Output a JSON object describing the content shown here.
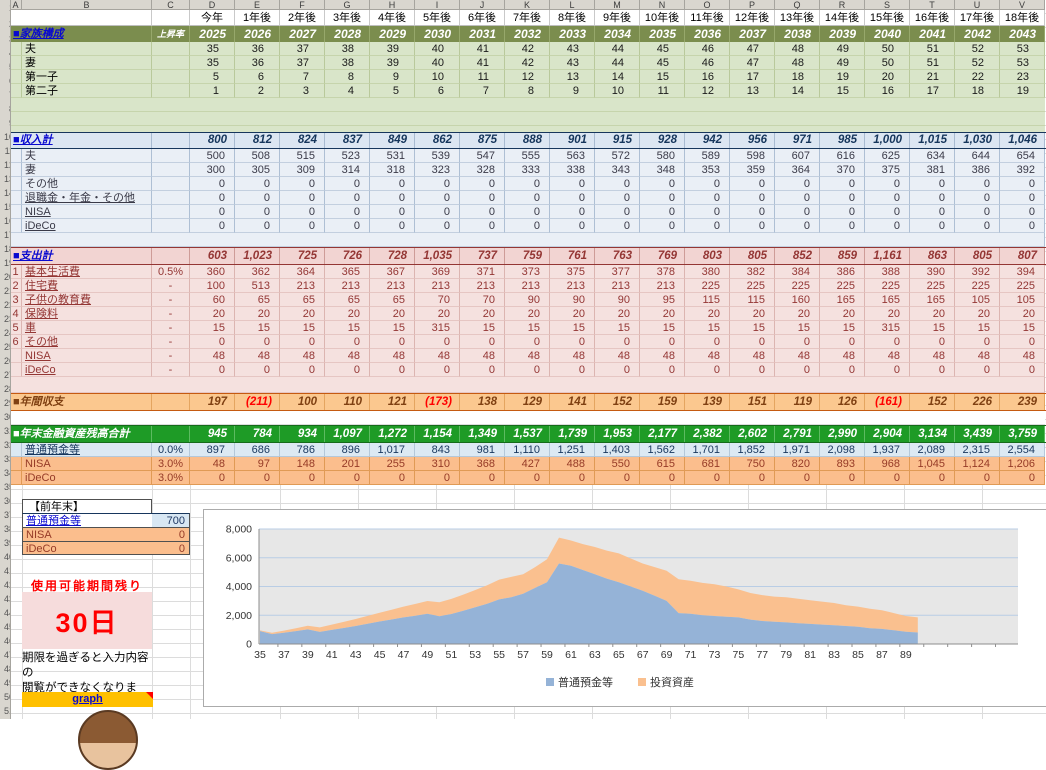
{
  "table": {
    "col_letters": [
      "A",
      "B",
      "C",
      "D",
      "E",
      "F",
      "G",
      "H",
      "I",
      "J",
      "K",
      "L",
      "M",
      "N",
      "O",
      "P",
      "Q",
      "R",
      "S",
      "T",
      "U",
      "V"
    ],
    "rel_years": [
      "今年",
      "1年後",
      "2年後",
      "3年後",
      "4年後",
      "5年後",
      "6年後",
      "7年後",
      "8年後",
      "9年後",
      "10年後",
      "11年後",
      "12年後",
      "13年後",
      "14年後",
      "15年後",
      "16年後",
      "17年後",
      "18年後"
    ],
    "years": [
      "2025",
      "2026",
      "2027",
      "2028",
      "2029",
      "2030",
      "2031",
      "2032",
      "2033",
      "2034",
      "2035",
      "2036",
      "2037",
      "2038",
      "2039",
      "2040",
      "2041",
      "2042",
      "2043"
    ],
    "family": {
      "title": "■家族構成",
      "rate_label": "上昇率",
      "rows": [
        {
          "label": "夫",
          "values": [
            35,
            36,
            37,
            38,
            39,
            40,
            41,
            42,
            43,
            44,
            45,
            46,
            47,
            48,
            49,
            50,
            51,
            52,
            53
          ]
        },
        {
          "label": "妻",
          "values": [
            35,
            36,
            37,
            38,
            39,
            40,
            41,
            42,
            43,
            44,
            45,
            46,
            47,
            48,
            49,
            50,
            51,
            52,
            53
          ]
        },
        {
          "label": "第一子",
          "values": [
            5,
            6,
            7,
            8,
            9,
            10,
            11,
            12,
            13,
            14,
            15,
            16,
            17,
            18,
            19,
            20,
            21,
            22,
            23
          ]
        },
        {
          "label": "第二子",
          "values": [
            1,
            2,
            3,
            4,
            5,
            6,
            7,
            8,
            9,
            10,
            11,
            12,
            13,
            14,
            15,
            16,
            17,
            18,
            19
          ]
        }
      ]
    },
    "income": {
      "title": "■収入計",
      "totals": [
        800,
        812,
        824,
        837,
        849,
        862,
        875,
        888,
        901,
        915,
        928,
        942,
        956,
        971,
        985,
        1000,
        1015,
        1030,
        1046
      ],
      "rows": [
        {
          "label": "夫",
          "link": false,
          "values": [
            500,
            508,
            515,
            523,
            531,
            539,
            547,
            555,
            563,
            572,
            580,
            589,
            598,
            607,
            616,
            625,
            634,
            644,
            654
          ]
        },
        {
          "label": "妻",
          "link": false,
          "values": [
            300,
            305,
            309,
            314,
            318,
            323,
            328,
            333,
            338,
            343,
            348,
            353,
            359,
            364,
            370,
            375,
            381,
            386,
            392
          ]
        },
        {
          "label": "その他",
          "link": false,
          "values": [
            0,
            0,
            0,
            0,
            0,
            0,
            0,
            0,
            0,
            0,
            0,
            0,
            0,
            0,
            0,
            0,
            0,
            0,
            0
          ]
        },
        {
          "label": "退職金・年金・その他",
          "link": true,
          "values": [
            0,
            0,
            0,
            0,
            0,
            0,
            0,
            0,
            0,
            0,
            0,
            0,
            0,
            0,
            0,
            0,
            0,
            0,
            0
          ]
        },
        {
          "label": "NISA",
          "link": true,
          "values": [
            0,
            0,
            0,
            0,
            0,
            0,
            0,
            0,
            0,
            0,
            0,
            0,
            0,
            0,
            0,
            0,
            0,
            0,
            0
          ]
        },
        {
          "label": "iDeCo",
          "link": true,
          "values": [
            0,
            0,
            0,
            0,
            0,
            0,
            0,
            0,
            0,
            0,
            0,
            0,
            0,
            0,
            0,
            0,
            0,
            0,
            0
          ]
        }
      ]
    },
    "expense": {
      "title": "■支出計",
      "totals": [
        603,
        1023,
        725,
        726,
        728,
        1035,
        737,
        759,
        761,
        763,
        769,
        803,
        805,
        852,
        859,
        1161,
        863,
        805,
        807
      ],
      "rows": [
        {
          "num": "1",
          "label": "基本生活費",
          "rate": "0.5%",
          "values": [
            360,
            362,
            364,
            365,
            367,
            369,
            371,
            373,
            375,
            377,
            378,
            380,
            382,
            384,
            386,
            388,
            390,
            392,
            394
          ]
        },
        {
          "num": "2",
          "label": "住宅費",
          "rate": "-",
          "values": [
            100,
            513,
            213,
            213,
            213,
            213,
            213,
            213,
            213,
            213,
            213,
            225,
            225,
            225,
            225,
            225,
            225,
            225,
            225
          ]
        },
        {
          "num": "3",
          "label": "子供の教育費",
          "rate": "-",
          "values": [
            60,
            65,
            65,
            65,
            65,
            70,
            70,
            90,
            90,
            90,
            95,
            115,
            115,
            160,
            165,
            165,
            165,
            105,
            105
          ]
        },
        {
          "num": "4",
          "label": "保険料",
          "rate": "-",
          "values": [
            20,
            20,
            20,
            20,
            20,
            20,
            20,
            20,
            20,
            20,
            20,
            20,
            20,
            20,
            20,
            20,
            20,
            20,
            20
          ]
        },
        {
          "num": "5",
          "label": "車",
          "rate": "-",
          "values": [
            15,
            15,
            15,
            15,
            15,
            315,
            15,
            15,
            15,
            15,
            15,
            15,
            15,
            15,
            15,
            315,
            15,
            15,
            15
          ]
        },
        {
          "num": "6",
          "label": "その他",
          "rate": "-",
          "values": [
            0,
            0,
            0,
            0,
            0,
            0,
            0,
            0,
            0,
            0,
            0,
            0,
            0,
            0,
            0,
            0,
            0,
            0,
            0
          ]
        },
        {
          "num": "",
          "label": "NISA",
          "rate": "-",
          "values": [
            48,
            48,
            48,
            48,
            48,
            48,
            48,
            48,
            48,
            48,
            48,
            48,
            48,
            48,
            48,
            48,
            48,
            48,
            48
          ]
        },
        {
          "num": "",
          "label": "iDeCo",
          "rate": "-",
          "values": [
            0,
            0,
            0,
            0,
            0,
            0,
            0,
            0,
            0,
            0,
            0,
            0,
            0,
            0,
            0,
            0,
            0,
            0,
            0
          ]
        }
      ]
    },
    "balance": {
      "title": "■年間収支",
      "values": [
        197,
        -211,
        100,
        110,
        121,
        -173,
        138,
        129,
        141,
        152,
        159,
        139,
        151,
        119,
        126,
        -161,
        152,
        226,
        239
      ]
    },
    "assets": {
      "title": "■年末金融資産残高合計",
      "totals": [
        945,
        784,
        934,
        1097,
        1272,
        1154,
        1349,
        1537,
        1739,
        1953,
        2177,
        2382,
        2602,
        2791,
        2990,
        2904,
        3134,
        3439,
        3759
      ],
      "rows": [
        {
          "label": "普通預金等",
          "rate": "0.0%",
          "theme": "blue",
          "link": true,
          "values": [
            897,
            686,
            786,
            896,
            1017,
            843,
            981,
            1110,
            1251,
            1403,
            1562,
            1701,
            1852,
            1971,
            2098,
            1937,
            2089,
            2315,
            2554
          ]
        },
        {
          "label": "NISA",
          "rate": "3.0%",
          "theme": "orange",
          "link": false,
          "values": [
            48,
            97,
            148,
            201,
            255,
            310,
            368,
            427,
            488,
            550,
            615,
            681,
            750,
            820,
            893,
            968,
            1045,
            1124,
            1206
          ]
        },
        {
          "label": "iDeCo",
          "rate": "3.0%",
          "theme": "orange",
          "link": false,
          "values": [
            0,
            0,
            0,
            0,
            0,
            0,
            0,
            0,
            0,
            0,
            0,
            0,
            0,
            0,
            0,
            0,
            0,
            0,
            0
          ]
        }
      ]
    },
    "prev_year": {
      "title": "【前年末】",
      "rows": [
        {
          "label": "普通預金等",
          "value": 700,
          "theme": "blue",
          "link": true
        },
        {
          "label": "NISA",
          "value": 0,
          "theme": "orange",
          "link": false
        },
        {
          "label": "iDeCo",
          "value": 0,
          "theme": "orange",
          "link": false
        }
      ]
    }
  },
  "widgets": {
    "remaining_title": "使用可能期間残り",
    "remaining_days": "30日",
    "note_line1": "期限を過ぎると入力内容の",
    "note_line2": "閲覧ができなくなります。",
    "graph_label": "graph"
  },
  "chart_data": {
    "type": "area",
    "stacked": true,
    "x_label_unit": "age",
    "x": [
      35,
      36,
      37,
      38,
      39,
      40,
      41,
      42,
      43,
      44,
      45,
      46,
      47,
      48,
      49,
      50,
      51,
      52,
      53,
      54,
      55,
      56,
      57,
      58,
      59,
      60,
      61,
      62,
      63,
      64,
      65,
      66,
      67,
      68,
      69,
      70,
      71,
      72,
      73,
      74,
      75,
      76,
      77,
      78,
      79,
      80,
      81,
      82,
      83,
      84,
      85,
      86,
      87,
      88,
      89,
      90
    ],
    "series": [
      {
        "name": "普通預金等",
        "color": "#95B3D7",
        "values": [
          897,
          686,
          786,
          896,
          1017,
          843,
          981,
          1110,
          1251,
          1403,
          1562,
          1701,
          1852,
          1971,
          2098,
          1937,
          2089,
          2315,
          2554,
          2800,
          3100,
          3250,
          3500,
          3900,
          4300,
          5600,
          5450,
          5150,
          4850,
          4550,
          4300,
          4000,
          3700,
          3350,
          3000,
          2150,
          2100,
          2000,
          1950,
          1900,
          1850,
          1700,
          1600,
          1550,
          1500,
          1450,
          1400,
          1350,
          1300,
          1250,
          1200,
          1100,
          1050,
          950,
          850,
          800
        ]
      },
      {
        "name": "投資資産",
        "color": "#FAC08F",
        "values": [
          48,
          97,
          148,
          201,
          255,
          310,
          368,
          427,
          488,
          550,
          615,
          681,
          750,
          820,
          893,
          968,
          1045,
          1124,
          1206,
          1290,
          1380,
          1420,
          1350,
          1450,
          1600,
          1800,
          1750,
          1800,
          1900,
          1950,
          2000,
          1950,
          1900,
          2000,
          2100,
          2350,
          2300,
          2250,
          2200,
          2100,
          1950,
          1850,
          1800,
          1750,
          1750,
          1700,
          1650,
          1600,
          1550,
          1450,
          1400,
          1350,
          1300,
          1200,
          1100,
          1050
        ]
      }
    ],
    "ylim": [
      0,
      8000
    ],
    "yticks": [
      0,
      2000,
      4000,
      6000,
      8000
    ],
    "ytick_labels": [
      "0",
      "2,000",
      "4,000",
      "6,000",
      "8,000"
    ],
    "xtick_labels": [
      35,
      37,
      39,
      41,
      43,
      45,
      47,
      49,
      51,
      53,
      55,
      57,
      59,
      61,
      63,
      65,
      67,
      69,
      71,
      73,
      75,
      77,
      79,
      81,
      83,
      85,
      87,
      89
    ],
    "x_axis_end": 98,
    "grid": true,
    "legend_position": "bottom"
  }
}
